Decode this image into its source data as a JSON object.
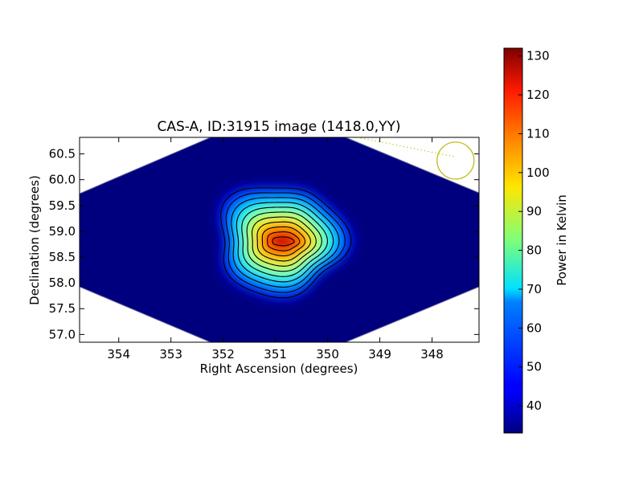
{
  "chart_data": {
    "type": "heatmap",
    "title": "CAS-A, ID:31915 image (1418.0,YY)",
    "xlabel": "Right Ascension (degrees)",
    "ylabel": "Declination (degrees)",
    "xlim": [
      354.75,
      347.1
    ],
    "ylim": [
      56.85,
      60.82
    ],
    "x_ticks": [
      354,
      353,
      352,
      351,
      350,
      349,
      348
    ],
    "x_tick_labels": [
      "354",
      "353",
      "352",
      "351",
      "350",
      "349",
      "348"
    ],
    "y_ticks": [
      57.0,
      57.5,
      58.0,
      58.5,
      59.0,
      59.5,
      60.0,
      60.5
    ],
    "y_tick_labels": [
      "57.0",
      "57.5",
      "58.0",
      "58.5",
      "59.0",
      "59.5",
      "60.0",
      "60.5"
    ],
    "source_peak": {
      "ra": 350.85,
      "dec": 58.8,
      "value": 132
    },
    "background_value": 33,
    "colormap": "jet",
    "contour_levels": [
      44,
      52,
      60,
      68,
      76,
      84,
      92,
      100,
      108,
      116,
      124
    ],
    "beam_circle": {
      "ra": 347.55,
      "dec": 60.37,
      "color": "#bdbd1a"
    },
    "colorbar": {
      "label": "Power in Kelvin",
      "min": 33,
      "max": 132,
      "ticks": [
        40,
        50,
        60,
        70,
        80,
        90,
        100,
        110,
        120,
        130
      ],
      "tick_labels": [
        "40",
        "50",
        "60",
        "70",
        "80",
        "90",
        "100",
        "110",
        "120",
        "130"
      ]
    }
  }
}
